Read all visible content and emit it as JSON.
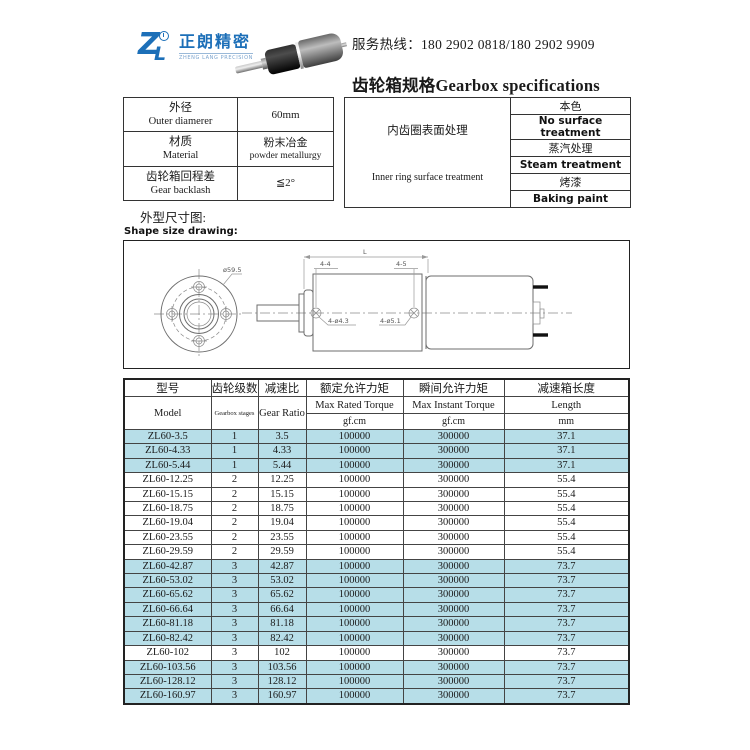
{
  "colors": {
    "highlight": "#b7dee8",
    "logo_blue": "#1c6fb8"
  },
  "logo": {
    "mark_z": "Z",
    "mark_l": "L",
    "company_cn": "正朗精密",
    "company_en": "ZHENG LANG PRECISION"
  },
  "header": {
    "hotline": "服务热线：180 2902 0818/180 2902 9909",
    "title": "齿轮箱规格Gearbox specifications"
  },
  "spec_left": {
    "rows": [
      {
        "label_cn": "外径",
        "label_en": "Outer diamerer",
        "value_line1": "60mm",
        "value_line2": ""
      },
      {
        "label_cn": "材质",
        "label_en": "Material",
        "value_line1": "粉末冶金",
        "value_line2": "powder metallurgy"
      },
      {
        "label_cn": "齿轮箱回程差",
        "label_en": "Gear backlash",
        "value_line1": "≦2°",
        "value_line2": ""
      }
    ]
  },
  "spec_right": {
    "label_cn": "内齿圈表面处理",
    "label_en": "Inner ring surface treatment",
    "options": [
      "本色",
      "No surface treatment",
      "蒸汽处理",
      "Steam treatment",
      "烤漆",
      "Baking paint"
    ]
  },
  "drawing": {
    "label_cn": "外型尺寸图:",
    "label_en": "Shape size drawing:",
    "dims": {
      "diameter": "ø59.5",
      "length": "L",
      "front_holes": "4-4",
      "rear_holes": "4-5",
      "hole_front": "4-ø4.3",
      "hole_rear": "4-ø5.1"
    }
  },
  "table": {
    "columns": [
      {
        "cn": "型号",
        "en": "Model",
        "unit": ""
      },
      {
        "cn": "齿轮级数",
        "en": "Gearbox stages",
        "unit": ""
      },
      {
        "cn": "减速比",
        "en": "Gear Ratio",
        "unit": ""
      },
      {
        "cn": "额定允许力矩",
        "en": "Max Rated Torque",
        "unit": "gf.cm"
      },
      {
        "cn": "瞬间允许力矩",
        "en": "Max Instant Torque",
        "unit": "gf.cm"
      },
      {
        "cn": "减速箱长度",
        "en": "Length",
        "unit": "mm"
      }
    ],
    "rows": [
      {
        "model": "ZL60-3.5",
        "stages": "1",
        "ratio": "3.5",
        "rated": "100000",
        "instant": "300000",
        "length": "37.1",
        "highlight": true
      },
      {
        "model": "ZL60-4.33",
        "stages": "1",
        "ratio": "4.33",
        "rated": "100000",
        "instant": "300000",
        "length": "37.1",
        "highlight": true
      },
      {
        "model": "ZL60-5.44",
        "stages": "1",
        "ratio": "5.44",
        "rated": "100000",
        "instant": "300000",
        "length": "37.1",
        "highlight": true
      },
      {
        "model": "ZL60-12.25",
        "stages": "2",
        "ratio": "12.25",
        "rated": "100000",
        "instant": "300000",
        "length": "55.4",
        "highlight": false
      },
      {
        "model": "ZL60-15.15",
        "stages": "2",
        "ratio": "15.15",
        "rated": "100000",
        "instant": "300000",
        "length": "55.4",
        "highlight": false
      },
      {
        "model": "ZL60-18.75",
        "stages": "2",
        "ratio": "18.75",
        "rated": "100000",
        "instant": "300000",
        "length": "55.4",
        "highlight": false
      },
      {
        "model": "ZL60-19.04",
        "stages": "2",
        "ratio": "19.04",
        "rated": "100000",
        "instant": "300000",
        "length": "55.4",
        "highlight": false
      },
      {
        "model": "ZL60-23.55",
        "stages": "2",
        "ratio": "23.55",
        "rated": "100000",
        "instant": "300000",
        "length": "55.4",
        "highlight": false
      },
      {
        "model": "ZL60-29.59",
        "stages": "2",
        "ratio": "29.59",
        "rated": "100000",
        "instant": "300000",
        "length": "55.4",
        "highlight": false
      },
      {
        "model": "ZL60-42.87",
        "stages": "3",
        "ratio": "42.87",
        "rated": "100000",
        "instant": "300000",
        "length": "73.7",
        "highlight": true
      },
      {
        "model": "ZL60-53.02",
        "stages": "3",
        "ratio": "53.02",
        "rated": "100000",
        "instant": "300000",
        "length": "73.7",
        "highlight": true
      },
      {
        "model": "ZL60-65.62",
        "stages": "3",
        "ratio": "65.62",
        "rated": "100000",
        "instant": "300000",
        "length": "73.7",
        "highlight": true
      },
      {
        "model": "ZL60-66.64",
        "stages": "3",
        "ratio": "66.64",
        "rated": "100000",
        "instant": "300000",
        "length": "73.7",
        "highlight": true
      },
      {
        "model": "ZL60-81.18",
        "stages": "3",
        "ratio": "81.18",
        "rated": "100000",
        "instant": "300000",
        "length": "73.7",
        "highlight": true
      },
      {
        "model": "ZL60-82.42",
        "stages": "3",
        "ratio": "82.42",
        "rated": "100000",
        "instant": "300000",
        "length": "73.7",
        "highlight": true
      },
      {
        "model": "ZL60-102",
        "stages": "3",
        "ratio": "102",
        "rated": "100000",
        "instant": "300000",
        "length": "73.7",
        "highlight": false
      },
      {
        "model": "ZL60-103.56",
        "stages": "3",
        "ratio": "103.56",
        "rated": "100000",
        "instant": "300000",
        "length": "73.7",
        "highlight": true
      },
      {
        "model": "ZL60-128.12",
        "stages": "3",
        "ratio": "128.12",
        "rated": "100000",
        "instant": "300000",
        "length": "73.7",
        "highlight": true
      },
      {
        "model": "ZL60-160.97",
        "stages": "3",
        "ratio": "160.97",
        "rated": "100000",
        "instant": "300000",
        "length": "73.7",
        "highlight": true
      }
    ]
  }
}
